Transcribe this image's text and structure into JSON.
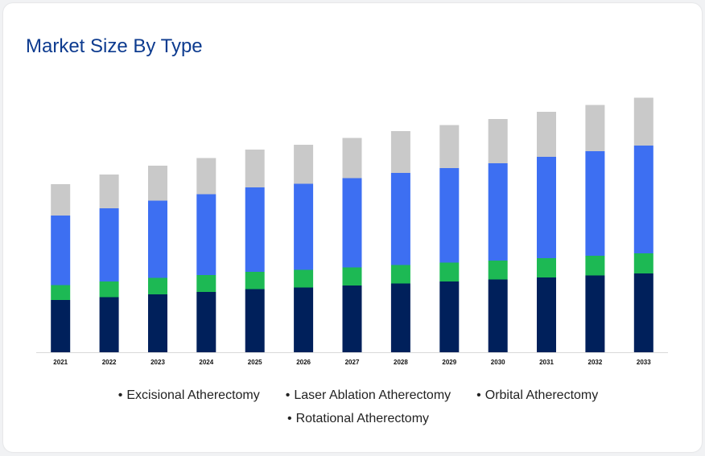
{
  "header": {
    "title": "Market Size By Type"
  },
  "colors": {
    "excisional": "#00205b",
    "orbital": "#1db954",
    "laser": "#3d6ff2",
    "rotational": "#c9c9c9",
    "title": "#0d3b8f"
  },
  "legend": {
    "bullet": "•",
    "items": [
      "Excisional Atherectomy",
      "Laser Ablation Atherectomy",
      "Orbital Atherectomy",
      "Rotational Atherectomy"
    ]
  },
  "chart_data": {
    "type": "bar",
    "stacked": true,
    "title": "Market Size By Type",
    "xlabel": "",
    "ylabel": "",
    "grid": false,
    "legend_position": "bottom",
    "categories": [
      "2021",
      "2022",
      "2023",
      "2024",
      "2025",
      "2026",
      "2027",
      "2028",
      "2029",
      "2030",
      "2031",
      "2032",
      "2033"
    ],
    "ylim": [
      0,
      330
    ],
    "series": [
      {
        "name": "Excisional Atherectomy",
        "color": "#00205b",
        "values": [
          65,
          68.5,
          72,
          75,
          78.5,
          80.5,
          83,
          85.5,
          88,
          90.5,
          93,
          95.5,
          98
        ]
      },
      {
        "name": "Orbital Atherectomy",
        "color": "#1db954",
        "values": [
          18.5,
          19.5,
          20.5,
          21,
          21.5,
          22,
          22.5,
          23,
          23.5,
          23.5,
          24,
          24.5,
          25
        ]
      },
      {
        "name": "Laser Ablation Atherectomy",
        "color": "#3d6ff2",
        "values": [
          86.5,
          91,
          96,
          100.5,
          105,
          107,
          111,
          114.5,
          117.5,
          121,
          126,
          130,
          134
        ]
      },
      {
        "name": "Rotational Atherectomy",
        "color": "#c9c9c9",
        "values": [
          39,
          42,
          43.5,
          45,
          47,
          48.5,
          50,
          52,
          53.5,
          55,
          56,
          57.5,
          59.5
        ]
      }
    ]
  }
}
